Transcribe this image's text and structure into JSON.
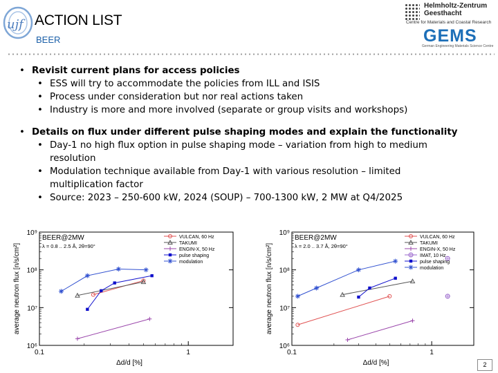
{
  "header": {
    "title": "ACTION LIST",
    "subtitle": "BEER",
    "hzg_name": "Helmholtz-Zentrum Geesthacht",
    "hzg_sub": "Centre for Materials and Coastal Research",
    "gems": "GEMS",
    "gems_sub": "German Engineering Materials Science Centre",
    "ujf_logo": "ujf"
  },
  "bullets": [
    {
      "text": "Revisit current plans for access policies",
      "children": [
        "ESS will try to accommodate the policies from ILL and ISIS",
        "Process under consideration but nor real actions taken",
        "Industry is more and more involved (separate or group visits and workshops)"
      ]
    },
    {
      "text": "Details on flux under different pulse shaping modes and explain the functionality",
      "children": [
        "Day-1 no high flux option in pulse shaping mode – variation from high to medium resolution",
        "Modulation technique available from Day-1 with various resolution – limited multiplication factor",
        "Source: 2023 – 250-600 kW, 2024 (SOUP) – 700-1300 kW, 2 MW at Q4/2025"
      ]
    }
  ],
  "page_number": "2",
  "chart_data": [
    {
      "type": "scatter",
      "title": "BEER@2MW",
      "annotation": "λ = 0.8 .. 2.5 Å, 2θ=90°",
      "xlabel": "Δd/d [%]",
      "ylabel": "average neutron flux [n/s/cm²]",
      "xscale": "log",
      "yscale": "log",
      "xlim": [
        0.1,
        2
      ],
      "ylim": [
        1000000,
        1000000000
      ],
      "xticks": [
        "0.1",
        "1"
      ],
      "yticks": [
        "10⁶",
        "10⁷",
        "10⁸",
        "10⁹"
      ],
      "legend_position": "top-right",
      "series": [
        {
          "name": "VULCAN, 60 Hz",
          "color": "#e05050",
          "marker": "circle",
          "x": [
            0.23,
            0.5
          ],
          "y": [
            22000000,
            52000000
          ]
        },
        {
          "name": "TAKUMI",
          "color": "#555555",
          "marker": "triangle",
          "x": [
            0.18,
            0.5
          ],
          "y": [
            21000000,
            48000000
          ]
        },
        {
          "name": "ENGIN-X, 50 Hz",
          "color": "#9944aa",
          "marker": "plus",
          "x": [
            0.18,
            0.55
          ],
          "y": [
            1500000,
            5000000
          ]
        },
        {
          "name": "pulse shaping",
          "color": "#1010cc",
          "marker": "square",
          "x": [
            0.21,
            0.26,
            0.32,
            0.57
          ],
          "y": [
            9000000,
            28000000,
            45000000,
            70000000
          ]
        },
        {
          "name": "modulation",
          "color": "#3050d0",
          "marker": "star",
          "x": [
            0.14,
            0.21,
            0.34,
            0.52
          ],
          "y": [
            27000000,
            70000000,
            105000000,
            100000000
          ]
        }
      ]
    },
    {
      "type": "scatter",
      "title": "BEER@2MW",
      "annotation": "λ = 2.0 .. 3.7 Å, 2θ=90°",
      "xlabel": "Δd/d [%]",
      "ylabel": "average neutron flux [n/s/cm²]",
      "xscale": "log",
      "yscale": "log",
      "xlim": [
        0.1,
        2
      ],
      "ylim": [
        1000000,
        1000000000
      ],
      "xticks": [
        "0.1",
        "1"
      ],
      "yticks": [
        "10⁶",
        "10⁷",
        "10⁸",
        "10⁹"
      ],
      "legend_position": "top-right",
      "series": [
        {
          "name": "VULCAN, 60 Hz",
          "color": "#e05050",
          "marker": "circle",
          "x": [
            0.11,
            0.5
          ],
          "y": [
            3500000,
            20000000
          ]
        },
        {
          "name": "TAKUMI",
          "color": "#555555",
          "marker": "triangle",
          "x": [
            0.23,
            0.73
          ],
          "y": [
            22000000,
            50000000
          ]
        },
        {
          "name": "ENGIN-X, 50 Hz",
          "color": "#9944aa",
          "marker": "plus",
          "x": [
            0.25,
            0.73
          ],
          "y": [
            1400000,
            4500000
          ]
        },
        {
          "name": "IMAT, 10 Hz",
          "color": "#9966cc",
          "marker": "circle-plus",
          "x": [
            1.3,
            1.3
          ],
          "y": [
            200000000,
            20000000
          ]
        },
        {
          "name": "pulse shaping",
          "color": "#1010cc",
          "marker": "square",
          "x": [
            0.3,
            0.36,
            0.55
          ],
          "y": [
            19000000,
            33000000,
            60000000
          ]
        },
        {
          "name": "modulation",
          "color": "#3050d0",
          "marker": "star",
          "x": [
            0.11,
            0.15,
            0.3,
            0.55
          ],
          "y": [
            20000000,
            33000000,
            100000000,
            170000000
          ]
        }
      ]
    }
  ]
}
